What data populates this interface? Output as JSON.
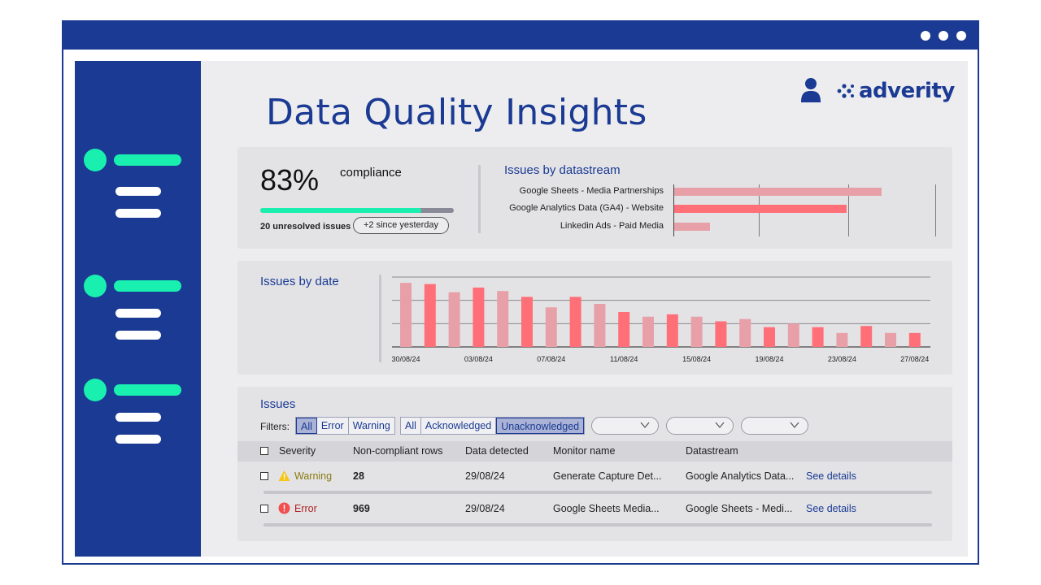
{
  "app": {
    "title": "Data Quality Insights",
    "brand": "adverity",
    "accent": "#1a3a93",
    "teal": "#19f0b0"
  },
  "compliance": {
    "percent": "83%",
    "label": "compliance",
    "progress_fraction": 0.83,
    "unresolved": "20 unresolved issues",
    "since": "+2 since yesterday"
  },
  "datastream_chart": {
    "title": "Issues by datastream",
    "rows": [
      {
        "label": "Google Sheets - Media Partnerships",
        "value": 7,
        "color": "#e8a0a8"
      },
      {
        "label": "Google Analytics Data (GA4) - Website",
        "value": 5.8,
        "color": "#ff6f78"
      },
      {
        "label": "Linkedin Ads - Paid Media",
        "value": 1.2,
        "color": "#e8a0a8"
      }
    ],
    "max": 8.8
  },
  "chart_data": {
    "type": "bar",
    "title": "Issues by date",
    "x_ticks": [
      "30/08/24",
      "03/08/24",
      "07/08/24",
      "11/08/24",
      "15/08/24",
      "19/08/24",
      "23/08/24",
      "27/08/24"
    ],
    "values": [
      27.5,
      27,
      23.5,
      25.5,
      24,
      21.5,
      17,
      21.5,
      18.5,
      15,
      13,
      14,
      13,
      11,
      12,
      8.5,
      10,
      8.5,
      6,
      9,
      6,
      6
    ],
    "colors": [
      "#e8a0a8",
      "#ff6f78"
    ],
    "ylim": [
      0,
      30
    ],
    "grid": true
  },
  "issues": {
    "title": "Issues",
    "filters_label": "Filters:",
    "severity_filters": [
      "All",
      "Error",
      "Warning"
    ],
    "ack_filters": [
      "All",
      "Acknowledged",
      "Unacknowledged"
    ],
    "columns": [
      "Severity",
      "Non-compliant rows",
      "Data detected",
      "Monitor name",
      "Datastream"
    ],
    "rows": [
      {
        "severity": "Warning",
        "rows": "28",
        "date": "29/08/24",
        "monitor": "Generate Capture Det...",
        "datastream": "Google Analytics Data...",
        "link": "See details",
        "icon": "warning-icon"
      },
      {
        "severity": "Error",
        "rows": "969",
        "date": "29/08/24",
        "monitor": "Google Sheets Media...",
        "datastream": "Google Sheets - Medi...",
        "link": "See details",
        "icon": "error-icon"
      }
    ]
  }
}
